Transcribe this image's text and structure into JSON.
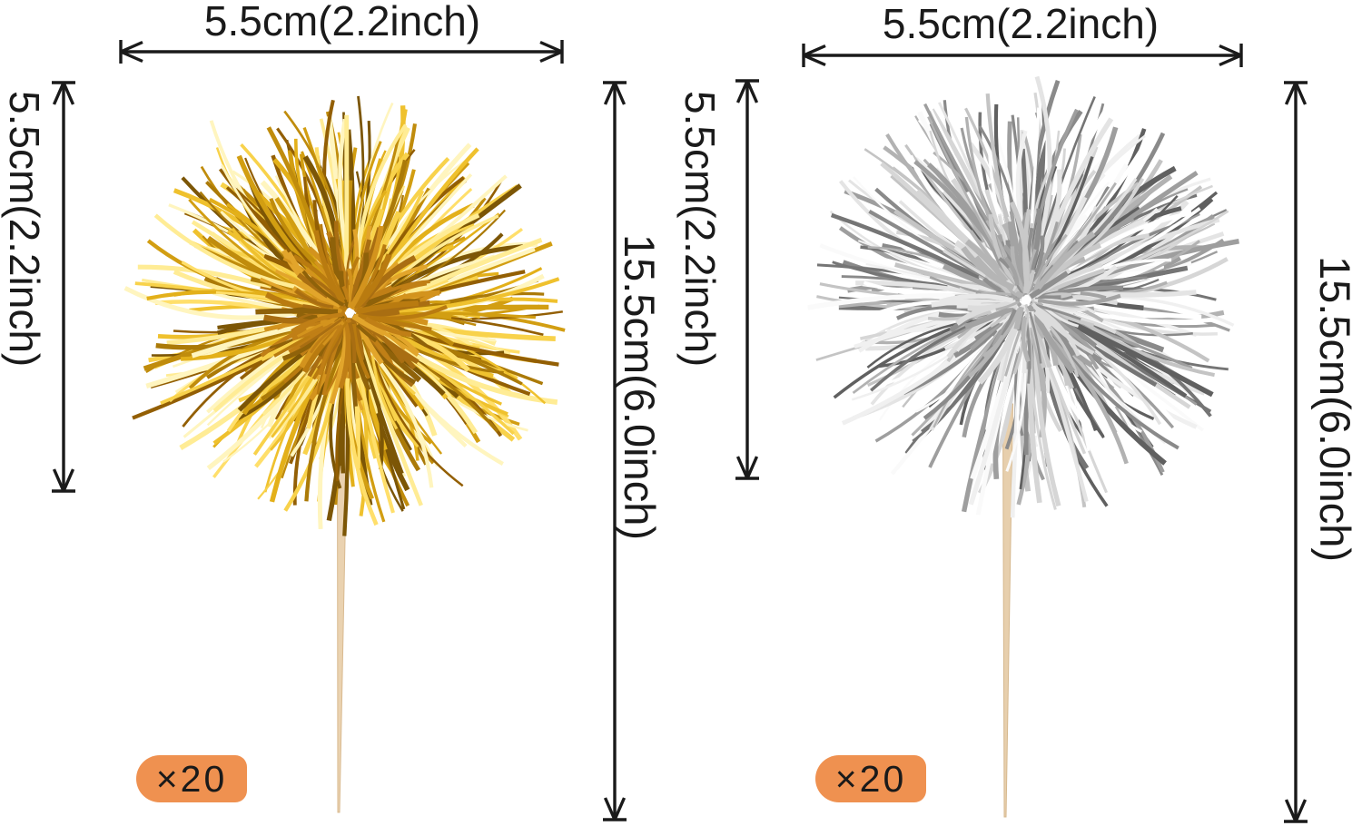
{
  "image": {
    "description": "tinsel pom pom cupcake topper picks dimension diagram",
    "background": "#ffffff"
  },
  "annotation": {
    "color": "#1a1a1a"
  },
  "badge": {
    "background": "#ef9150",
    "text_color": "#1a1a1a"
  },
  "products": [
    {
      "name": "gold tinsel pom pom pick",
      "width_label": "5.5cm(2.2inch)",
      "pom_height_label": "5.5cm(2.2inch)",
      "total_height_label": "15.5cm(6.0inch)",
      "quantity_label": "×20",
      "tinsel_colors": [
        "#7c5606",
        "#935f04",
        "#ab7a08",
        "#c08c0c",
        "#d29e12",
        "#e3b01a",
        "#efc12e",
        "#f8d24b",
        "#ffdf6b",
        "#ffec95",
        "#fff5bf"
      ],
      "core_colors": [
        "#a96e12",
        "#c07f16",
        "#d3931d",
        "#b97b10",
        "#e2a52b",
        "#8f620a"
      ],
      "stick_color": "#ead2b0",
      "stick_edge_color": "#d9ba90"
    },
    {
      "name": "silver tinsel pom pom pick",
      "width_label": "5.5cm(2.2inch)",
      "pom_height_label": "5.5cm(2.2inch)",
      "total_height_label": "15.5cm(6.0inch)",
      "quantity_label": "×20",
      "tinsel_colors": [
        "#606060",
        "#757575",
        "#8a8a8a",
        "#9e9e9e",
        "#b2b2b2",
        "#c4c4c4",
        "#d6d6d6",
        "#e4e4e4",
        "#f0f0f0",
        "#fafafa",
        "#ffffff"
      ],
      "core_colors": [
        "#b5b5b5",
        "#c9c9c9",
        "#a3a3a3",
        "#dcdcdc",
        "#8f8f8f",
        "#e8e8e8"
      ],
      "stick_color": "#e7cfad",
      "stick_edge_color": "#d6b88e"
    }
  ]
}
